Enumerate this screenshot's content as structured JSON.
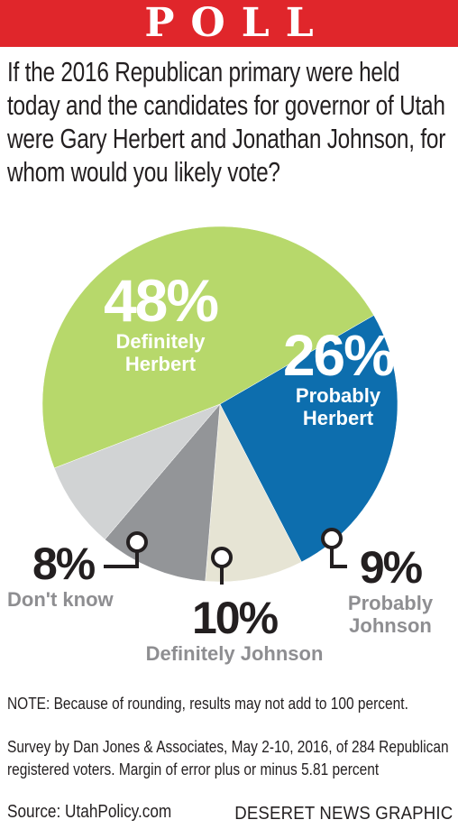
{
  "banner": {
    "title": "POLL"
  },
  "question": "If the 2016 Republican primary were held today and the candidates for governor of Utah were Gary Herbert and Jonathan Johnson, for whom would you likely vote?",
  "chart_data": {
    "type": "pie",
    "title": "",
    "slices": [
      {
        "label": "Definitely Herbert",
        "percent_label": "48%",
        "value": 48,
        "color": "#b7d86b"
      },
      {
        "label": "Probably Herbert",
        "percent_label": "26%",
        "value": 26,
        "color": "#0d6eae"
      },
      {
        "label": "Probably Johnson",
        "percent_label": "9%",
        "value": 9,
        "color": "#e6e4d4"
      },
      {
        "label": "Definitely Johnson",
        "percent_label": "10%",
        "value": 10,
        "color": "#939598"
      },
      {
        "label": "Don't know",
        "percent_label": "8%",
        "value": 8,
        "color": "#d1d3d4"
      }
    ]
  },
  "labels": {
    "def_herbert_cat": "Definitely\nHerbert",
    "prob_herbert_cat": "Probably\nHerbert",
    "prob_johnson_cat": "Probably\nJohnson"
  },
  "notes": {
    "rounding": "NOTE: Because of rounding, results may not add to 100 percent.",
    "survey_line1": "Survey by Dan Jones & Associates, May 2-10, 2016, of 284 Republican",
    "survey_line2": "registered voters. Margin of error plus or minus 5.81 percent",
    "source": "Source: UtahPolicy.com"
  },
  "credit": "DESERET NEWS GRAPHIC"
}
